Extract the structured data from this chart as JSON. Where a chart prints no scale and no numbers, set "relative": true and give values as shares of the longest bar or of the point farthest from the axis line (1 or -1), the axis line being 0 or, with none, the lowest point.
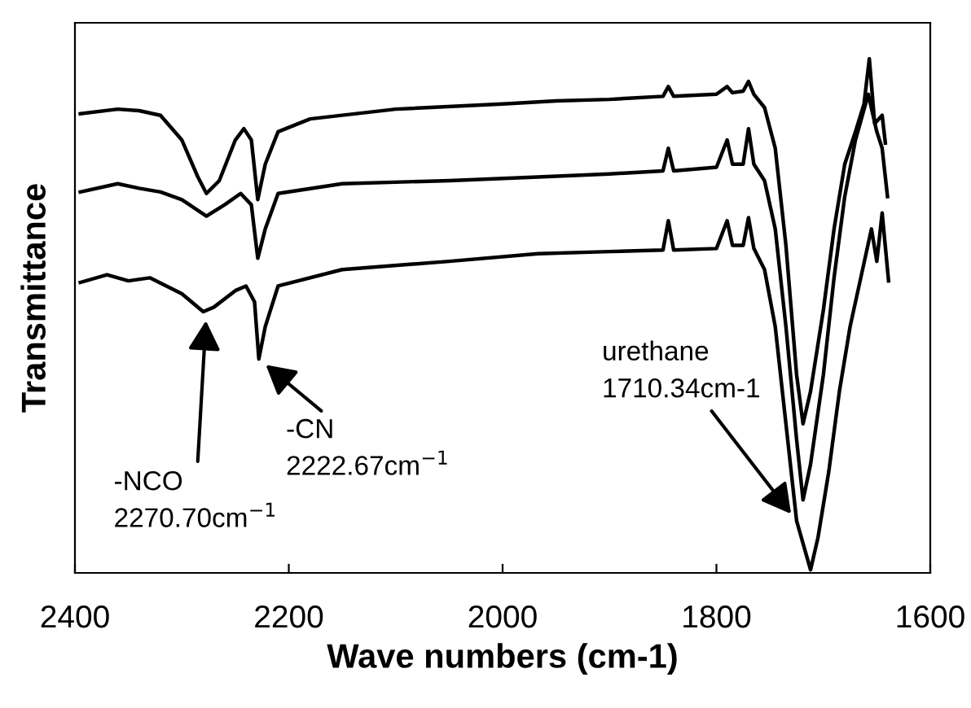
{
  "chart_data": {
    "type": "line",
    "relative": true,
    "xlabel": "Wave numbers (cm-1)",
    "ylabel": "Transmittance",
    "xlim": [
      2400,
      1600
    ],
    "xticks": [
      2400,
      2200,
      2000,
      1800,
      1600
    ],
    "grid": false,
    "legend": false,
    "marker": "none",
    "line_style": "solid",
    "tick_labels": "x",
    "series": [
      {
        "color": "#000000",
        "x": [
          2395,
          2360,
          2340,
          2320,
          2300,
          2285,
          2277,
          2265,
          2250,
          2242,
          2235,
          2229,
          2222,
          2210,
          2180,
          2100,
          2000,
          1950,
          1900,
          1850,
          1845,
          1840,
          1800,
          1790,
          1785,
          1775,
          1770,
          1765,
          1755,
          1745,
          1735,
          1725,
          1719,
          1712,
          1700,
          1690,
          1680,
          1670,
          1662,
          1657,
          1652,
          1645,
          1642
        ],
        "values": [
          0.893,
          0.902,
          0.899,
          0.89,
          0.842,
          0.77,
          0.738,
          0.763,
          0.842,
          0.864,
          0.842,
          0.726,
          0.795,
          0.858,
          0.883,
          0.902,
          0.912,
          0.918,
          0.921,
          0.927,
          0.946,
          0.927,
          0.931,
          0.946,
          0.934,
          0.937,
          0.956,
          0.931,
          0.905,
          0.826,
          0.637,
          0.385,
          0.29,
          0.353,
          0.511,
          0.669,
          0.795,
          0.858,
          0.912,
          1.0,
          0.874,
          0.89,
          0.836
        ]
      },
      {
        "color": "#000000",
        "x": [
          2395,
          2360,
          2340,
          2320,
          2300,
          2277,
          2260,
          2245,
          2235,
          2229,
          2222,
          2210,
          2150,
          2050,
          1967,
          1900,
          1850,
          1845,
          1840,
          1800,
          1790,
          1785,
          1775,
          1770,
          1765,
          1755,
          1745,
          1735,
          1725,
          1719,
          1712,
          1700,
          1690,
          1680,
          1670,
          1658,
          1650,
          1645,
          1640
        ],
        "values": [
          0.741,
          0.757,
          0.748,
          0.741,
          0.726,
          0.694,
          0.716,
          0.738,
          0.716,
          0.612,
          0.669,
          0.738,
          0.757,
          0.763,
          0.77,
          0.776,
          0.782,
          0.826,
          0.782,
          0.789,
          0.842,
          0.795,
          0.795,
          0.864,
          0.795,
          0.763,
          0.669,
          0.479,
          0.259,
          0.142,
          0.211,
          0.385,
          0.574,
          0.732,
          0.842,
          0.931,
          0.858,
          0.826,
          0.732
        ]
      },
      {
        "color": "#000000",
        "x": [
          2395,
          2370,
          2350,
          2330,
          2300,
          2280,
          2270,
          2250,
          2240,
          2232,
          2228,
          2222,
          2210,
          2150,
          2050,
          1967,
          1900,
          1850,
          1845,
          1840,
          1800,
          1790,
          1785,
          1775,
          1770,
          1765,
          1755,
          1745,
          1735,
          1725,
          1712,
          1705,
          1695,
          1685,
          1675,
          1665,
          1655,
          1650,
          1645,
          1640,
          1639
        ],
        "values": [
          0.565,
          0.58,
          0.568,
          0.574,
          0.543,
          0.508,
          0.517,
          0.549,
          0.558,
          0.527,
          0.416,
          0.479,
          0.558,
          0.59,
          0.606,
          0.621,
          0.625,
          0.628,
          0.685,
          0.628,
          0.631,
          0.685,
          0.637,
          0.637,
          0.691,
          0.631,
          0.59,
          0.479,
          0.29,
          0.101,
          0.006,
          0.069,
          0.196,
          0.353,
          0.479,
          0.574,
          0.669,
          0.606,
          0.7,
          0.59,
          0.568
        ]
      }
    ],
    "annotations": [
      {
        "text": "-NCO\n2270.70cm$^{−1}$",
        "x": 2277,
        "y": 0.508
      },
      {
        "text": "-CN\n2222.67cm$^{−1}$",
        "x": 2228,
        "y": 0.416
      },
      {
        "text": "urethane\n1710.34cm-1",
        "x": 1725,
        "y": 0.101
      }
    ]
  }
}
